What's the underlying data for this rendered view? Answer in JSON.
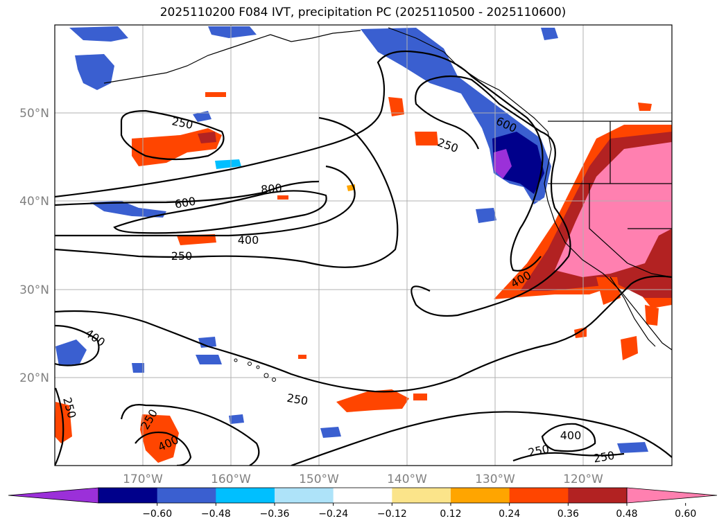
{
  "title": "2025110200 F084 IVT, precipitation PC (2025110500 - 2025110600)",
  "chart_data": {
    "type": "map",
    "lat_labels": [
      "50°N",
      "40°N",
      "30°N",
      "20°N"
    ],
    "lon_labels": [
      "170°W",
      "160°W",
      "150°W",
      "140°W",
      "130°W",
      "120°W"
    ],
    "contour_labels": [
      "250",
      "250",
      "800",
      "600",
      "400",
      "250",
      "400",
      "600",
      "250",
      "400",
      "250",
      "250",
      "400",
      "250",
      "250",
      "400"
    ],
    "colorbar": {
      "ticks": [
        "−0.60",
        "−0.48",
        "−0.36",
        "−0.24",
        "−0.12",
        "0.12",
        "0.24",
        "0.36",
        "0.48",
        "0.60"
      ],
      "colors": [
        "#9b30d9",
        "#00008b",
        "#3a5fd0",
        "#00bfff",
        "#aee3f9",
        "#ffffff",
        "#fbe48a",
        "#ffa500",
        "#ff4500",
        "#b22222",
        "#ff80b0"
      ]
    }
  }
}
